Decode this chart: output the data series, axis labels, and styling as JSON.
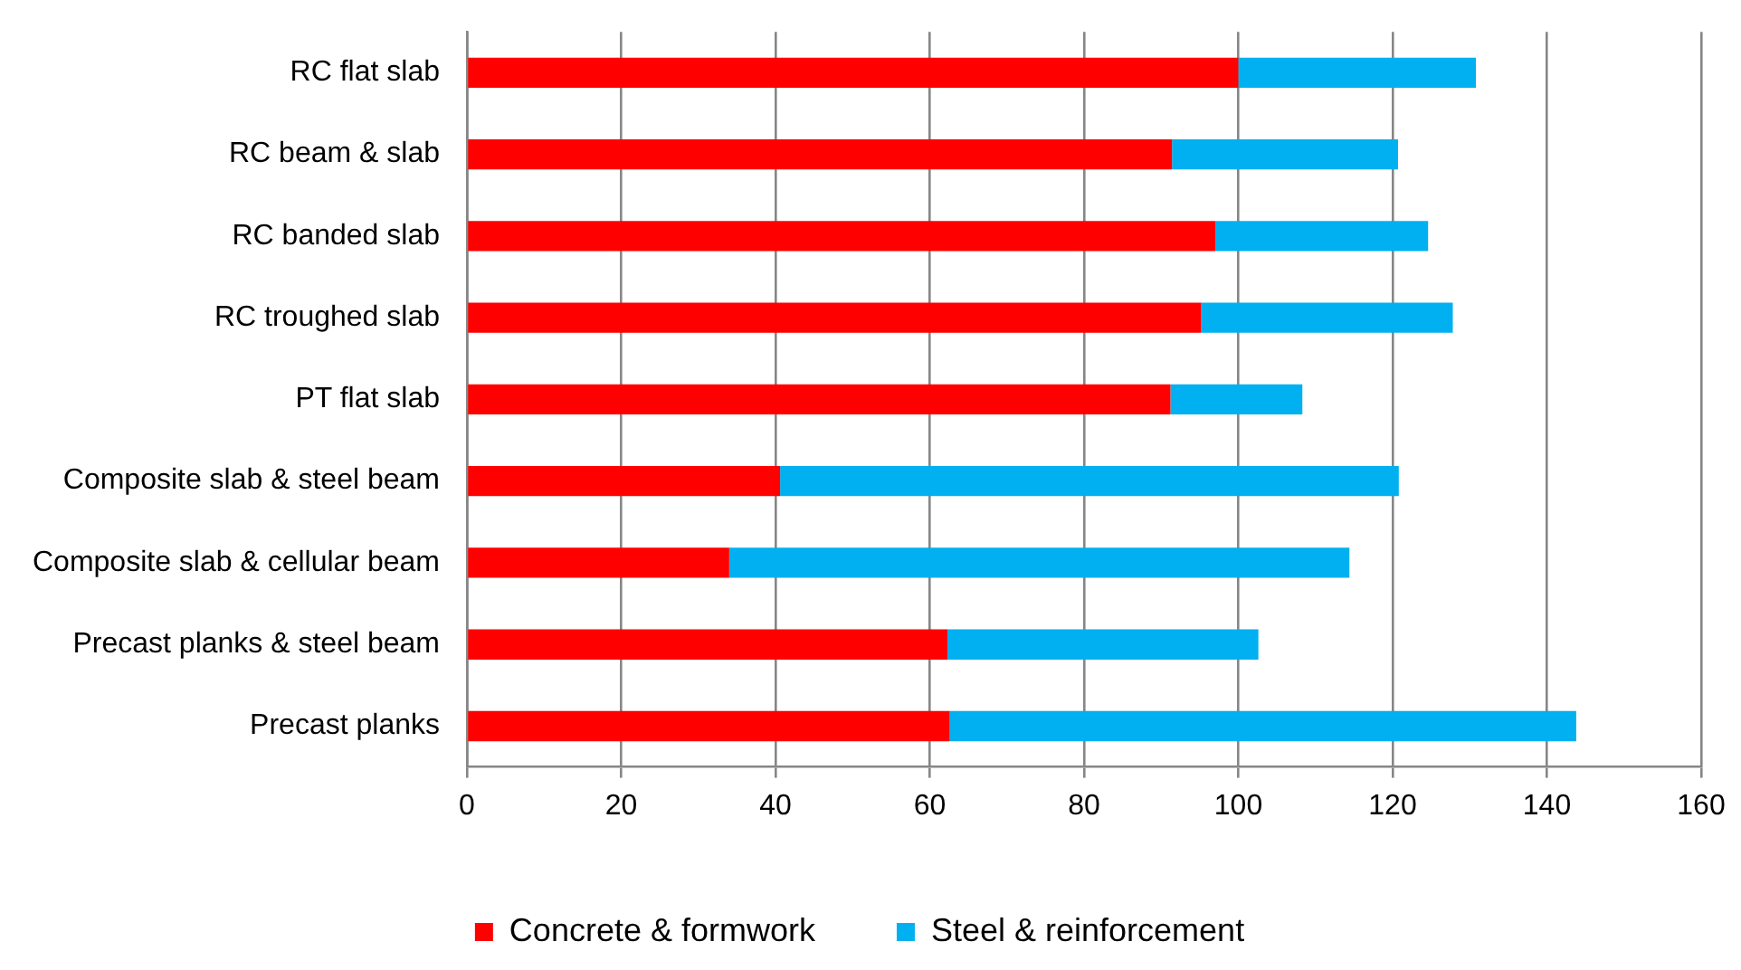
{
  "chart_data": {
    "type": "bar",
    "orientation": "horizontal",
    "stacked": true,
    "categories": [
      "RC flat slab",
      "RC beam & slab",
      "RC banded slab",
      "RC troughed slab",
      "PT flat slab",
      "Composite slab & steel beam",
      "Composite slab & cellular beam",
      "Precast planks & steel beam",
      "Precast planks"
    ],
    "series": [
      {
        "name": "Concrete & formwork",
        "color": "#ff0000",
        "values": [
          100,
          91.4,
          97,
          95.2,
          91.2,
          40.6,
          34,
          62.3,
          62.6
        ]
      },
      {
        "name": "Steel & reinforcement",
        "color": "#00b0f0",
        "values": [
          30.8,
          29.3,
          27.6,
          32.6,
          17.1,
          80.2,
          80.4,
          40.3,
          81.2
        ]
      }
    ],
    "xlim": [
      0,
      160
    ],
    "xticks": [
      0,
      20,
      40,
      60,
      80,
      100,
      120,
      140,
      160
    ],
    "grid": "x",
    "legend": "bottom"
  }
}
